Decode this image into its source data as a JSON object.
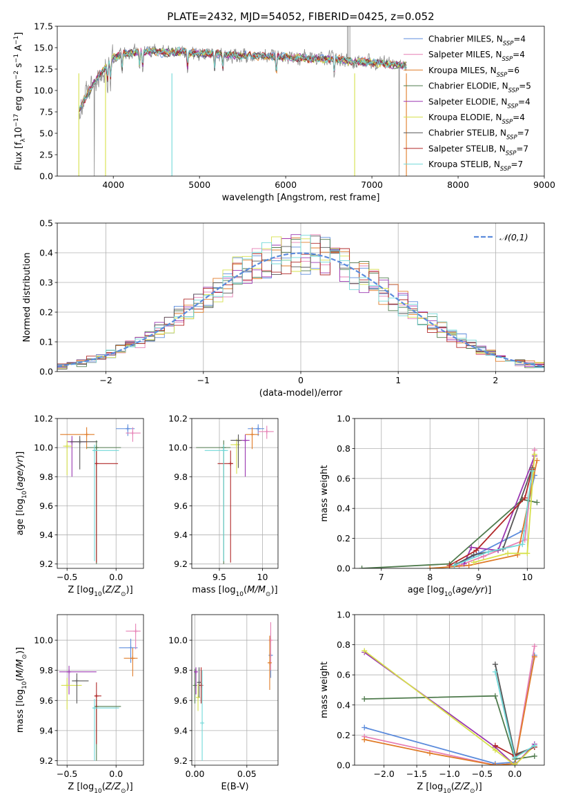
{
  "title": "PLATE=2432, MJD=54052, FIBERID=0425, z=0.052",
  "colors": {
    "chabrier_miles": "#5b8bdc",
    "salpeter_miles": "#e67fb4",
    "kroupa_miles": "#e07b27",
    "chabrier_elodie": "#4e7a4c",
    "salpeter_elodie": "#9a36b0",
    "kroupa_elodie": "#d6e04a",
    "chabrier_stelib": "#555555",
    "salpeter_stelib": "#b02828",
    "kroupa_stelib": "#70d8d8"
  },
  "chart_data": [
    {
      "id": "spectrum",
      "type": "line",
      "xlabel": "wavelength [Angstrom, rest frame]",
      "ylabel": "Flux [f_λ 10^-17 erg cm^-2 s^-1 A^-1]",
      "xlim": [
        3350,
        9000
      ],
      "ylim": [
        0,
        17.5
      ],
      "xticks": [
        4000,
        5000,
        6000,
        7000,
        8000,
        9000
      ],
      "yticks": [
        0.0,
        2.5,
        5.0,
        7.5,
        10.0,
        12.5,
        15.0,
        17.5
      ],
      "legend_position": "top-right",
      "legend": [
        "Chabrier MILES, N_SSP=4",
        "Salpeter MILES, N_SSP=4",
        "Kroupa MILES, N_SSP=6",
        "Chabrier ELODIE, N_SSP=5",
        "Salpeter ELODIE, N_SSP=4",
        "Kroupa ELODIE, N_SSP=4",
        "Chabrier STELIB, N_SSP=7",
        "Salpeter STELIB, N_SSP=7",
        "Kroupa STELIB, N_SSP=7"
      ],
      "continuum": {
        "x": [
          3600,
          3700,
          3800,
          3900,
          4000,
          4100,
          4200,
          4400,
          4600,
          4800,
          5000,
          5200,
          5400,
          5600,
          5800,
          6000,
          6200,
          6400,
          6600,
          6800,
          7000,
          7200,
          7400
        ],
        "y": [
          7.8,
          9.5,
          11.3,
          12.6,
          13.8,
          14.2,
          14.4,
          14.6,
          14.4,
          14.5,
          14.3,
          14.3,
          14.1,
          14.1,
          14.0,
          13.9,
          13.8,
          13.7,
          13.6,
          13.4,
          13.3,
          13.1,
          12.9
        ]
      },
      "absorption_features": [
        3934,
        3969,
        4102,
        4305,
        4341,
        4861,
        5175,
        5270,
        5892,
        6563
      ],
      "deep_drops": [
        3600,
        3910,
        4680,
        6800,
        7400
      ]
    },
    {
      "id": "residuals",
      "type": "histogram",
      "xlabel": "(data-model)/error",
      "ylabel": "Normed distribution",
      "xlim": [
        -2.5,
        2.5
      ],
      "ylim": [
        0,
        0.5
      ],
      "xticks": [
        -2,
        -1,
        0,
        1,
        2
      ],
      "yticks": [
        0.0,
        0.1,
        0.2,
        0.3,
        0.4,
        0.5
      ],
      "bin_width": 0.1,
      "legend_position": "top-right",
      "gaussian_label": "𝒩(0,1)",
      "gaussian_color": "#5b8bdc"
    },
    {
      "id": "age_vs_Z",
      "type": "errorbar",
      "xlabel": "Z [log10(Z/Z⊙)]",
      "ylabel": "age [log10(age/yr)]",
      "xlim": [
        -0.6,
        0.28
      ],
      "ylim": [
        9.17,
        10.2
      ],
      "xticks": [
        -0.5,
        0.0
      ],
      "xtick_labels": [
        "−0.5",
        "0.0"
      ],
      "yticks": [
        9.2,
        9.4,
        9.6,
        9.8,
        10.0,
        10.2
      ],
      "points": [
        {
          "model": "chabrier_miles",
          "x": 0.12,
          "y": 10.13,
          "xerr": [
            0.12,
            0.07
          ],
          "yerr": [
            0.05,
            0.03
          ]
        },
        {
          "model": "salpeter_miles",
          "x": 0.17,
          "y": 10.1,
          "xerr": [
            0.07,
            0.08
          ],
          "yerr": [
            0.06,
            0.04
          ]
        },
        {
          "model": "kroupa_miles",
          "x": -0.3,
          "y": 10.09,
          "xerr": [
            0.27,
            0.08
          ],
          "yerr": [
            0.1,
            0.05
          ]
        },
        {
          "model": "chabrier_elodie",
          "x": -0.2,
          "y": 10.0,
          "xerr": [
            0.1,
            0.25
          ],
          "yerr": [
            0.8,
            0.05
          ]
        },
        {
          "model": "salpeter_elodie",
          "x": -0.45,
          "y": 10.04,
          "xerr": [
            0.05,
            0.15
          ],
          "yerr": [
            0.24,
            0.04
          ]
        },
        {
          "model": "kroupa_elodie",
          "x": -0.5,
          "y": 10.01,
          "xerr": [
            0.04,
            0.05
          ],
          "yerr": [
            0.2,
            0.04
          ]
        },
        {
          "model": "chabrier_stelib",
          "x": -0.37,
          "y": 10.04,
          "xerr": [
            0.1,
            0.18
          ],
          "yerr": [
            0.19,
            0.04
          ]
        },
        {
          "model": "salpeter_stelib",
          "x": -0.2,
          "y": 9.89,
          "xerr": [
            0.02,
            0.22
          ],
          "yerr": [
            0.68,
            0.09
          ]
        },
        {
          "model": "kroupa_stelib",
          "x": -0.22,
          "y": 9.98,
          "xerr": [
            0.02,
            0.25
          ],
          "yerr": [
            0.76,
            0.04
          ]
        }
      ]
    },
    {
      "id": "age_vs_mass",
      "type": "errorbar",
      "xlabel": "mass [log10(M/M⊙)]",
      "xlim": [
        9.18,
        10.18
      ],
      "ylim": [
        9.17,
        10.2
      ],
      "xticks": [
        9.5,
        10.0
      ],
      "yticks": [
        9.2,
        9.4,
        9.6,
        9.8,
        10.0,
        10.2
      ],
      "points": [
        {
          "model": "chabrier_miles",
          "x": 9.95,
          "y": 10.13,
          "xerr": [
            0.12,
            0.07
          ],
          "yerr": [
            0.05,
            0.03
          ]
        },
        {
          "model": "salpeter_miles",
          "x": 10.05,
          "y": 10.11,
          "xerr": [
            0.1,
            0.08
          ],
          "yerr": [
            0.05,
            0.04
          ]
        },
        {
          "model": "kroupa_miles",
          "x": 9.88,
          "y": 10.09,
          "xerr": [
            0.08,
            0.08
          ],
          "yerr": [
            0.1,
            0.05
          ]
        },
        {
          "model": "chabrier_elodie",
          "x": 9.55,
          "y": 10.0,
          "xerr": [
            0.32,
            0.08
          ],
          "yerr": [
            0.8,
            0.05
          ]
        },
        {
          "model": "salpeter_elodie",
          "x": 9.8,
          "y": 10.05,
          "xerr": [
            0.1,
            0.05
          ],
          "yerr": [
            0.25,
            0.04
          ]
        },
        {
          "model": "kroupa_elodie",
          "x": 9.7,
          "y": 10.02,
          "xerr": [
            0.07,
            0.04
          ],
          "yerr": [
            0.2,
            0.04
          ]
        },
        {
          "model": "chabrier_stelib",
          "x": 9.72,
          "y": 10.05,
          "xerr": [
            0.09,
            0.04
          ],
          "yerr": [
            0.19,
            0.04
          ]
        },
        {
          "model": "salpeter_stelib",
          "x": 9.63,
          "y": 9.89,
          "xerr": [
            0.15,
            0.03
          ],
          "yerr": [
            0.68,
            0.09
          ]
        },
        {
          "model": "kroupa_stelib",
          "x": 9.55,
          "y": 9.98,
          "xerr": [
            0.22,
            0.05
          ],
          "yerr": [
            0.76,
            0.04
          ]
        }
      ]
    },
    {
      "id": "weight_vs_age",
      "type": "line",
      "xlabel": "age [log10(age/yr)]",
      "ylabel": "mass weight",
      "xlim": [
        6.45,
        10.35
      ],
      "ylim": [
        0,
        1.0
      ],
      "xticks": [
        7,
        8,
        9,
        10
      ],
      "yticks": [
        0.0,
        0.2,
        0.4,
        0.6,
        0.8,
        1.0
      ],
      "series": [
        {
          "model": "chabrier_miles",
          "x": [
            8.5,
            9.0,
            9.9,
            10.15
          ],
          "y": [
            0.02,
            0.1,
            0.25,
            0.62
          ]
        },
        {
          "model": "salpeter_miles",
          "x": [
            8.6,
            9.1,
            9.95,
            10.15
          ],
          "y": [
            0.02,
            0.08,
            0.19,
            0.79
          ]
        },
        {
          "model": "kroupa_miles",
          "x": [
            8.0,
            8.8,
            9.8,
            10.2
          ],
          "y": [
            0.0,
            0.02,
            0.09,
            0.72
          ]
        },
        {
          "model": "chabrier_elodie",
          "x": [
            6.6,
            8.4,
            9.9,
            10.2
          ],
          "y": [
            0.0,
            0.03,
            0.46,
            0.44
          ]
        },
        {
          "model": "salpeter_elodie",
          "x": [
            8.7,
            8.85,
            9.4,
            10.15
          ],
          "y": [
            0.03,
            0.14,
            0.12,
            0.75
          ]
        },
        {
          "model": "kroupa_elodie",
          "x": [
            8.9,
            9.6,
            10.0,
            10.15
          ],
          "y": [
            0.04,
            0.1,
            0.1,
            0.76
          ]
        },
        {
          "model": "chabrier_stelib",
          "x": [
            8.55,
            8.9,
            9.5,
            10.1
          ],
          "y": [
            0.03,
            0.09,
            0.13,
            0.67
          ]
        },
        {
          "model": "salpeter_stelib",
          "x": [
            8.4,
            8.95,
            9.95,
            10.1
          ],
          "y": [
            0.02,
            0.12,
            0.47,
            0.66
          ]
        },
        {
          "model": "kroupa_stelib",
          "x": [
            8.5,
            9.2,
            9.9,
            10.1
          ],
          "y": [
            0.02,
            0.11,
            0.16,
            0.65
          ]
        }
      ]
    },
    {
      "id": "mass_vs_Z",
      "type": "errorbar",
      "xlabel": "Z [log10(Z/Z⊙)]",
      "ylabel": "mass [log10(M/M⊙)]",
      "xlim": [
        -0.6,
        0.28
      ],
      "ylim": [
        9.17,
        10.17
      ],
      "xticks": [
        -0.5,
        0.0
      ],
      "xtick_labels": [
        "−0.5",
        "0.0"
      ],
      "yticks": [
        9.2,
        9.4,
        9.6,
        9.8,
        10.0
      ],
      "points": [
        {
          "model": "chabrier_miles",
          "x": 0.15,
          "y": 9.95,
          "xerr": [
            0.12,
            0.07
          ],
          "yerr": [
            0.1,
            0.06
          ]
        },
        {
          "model": "salpeter_miles",
          "x": 0.2,
          "y": 10.06,
          "xerr": [
            0.1,
            0.05
          ],
          "yerr": [
            0.12,
            0.05
          ]
        },
        {
          "model": "kroupa_miles",
          "x": 0.17,
          "y": 9.88,
          "xerr": [
            0.09,
            0.05
          ],
          "yerr": [
            0.12,
            0.07
          ]
        },
        {
          "model": "chabrier_elodie",
          "x": -0.2,
          "y": 9.56,
          "xerr": [
            0.02,
            0.25
          ],
          "yerr": [
            0.36,
            0.05
          ]
        },
        {
          "model": "salpeter_elodie",
          "x": -0.48,
          "y": 9.79,
          "xerr": [
            0.1,
            0.28
          ],
          "yerr": [
            0.15,
            0.04
          ]
        },
        {
          "model": "kroupa_elodie",
          "x": -0.5,
          "y": 9.7,
          "xerr": [
            0.06,
            0.15
          ],
          "yerr": [
            0.16,
            0.05
          ]
        },
        {
          "model": "chabrier_stelib",
          "x": -0.4,
          "y": 9.73,
          "xerr": [
            0.05,
            0.12
          ],
          "yerr": [
            0.15,
            0.05
          ]
        },
        {
          "model": "salpeter_stelib",
          "x": -0.2,
          "y": 9.63,
          "xerr": [
            0.02,
            0.05
          ],
          "yerr": [
            0.32,
            0.09
          ]
        },
        {
          "model": "kroupa_stelib",
          "x": -0.22,
          "y": 9.55,
          "xerr": [
            0.02,
            0.25
          ],
          "yerr": [
            0.35,
            0.06
          ]
        }
      ]
    },
    {
      "id": "mass_vs_ebv",
      "type": "errorbar",
      "xlabel": "E(B-V)",
      "xlim": [
        -0.003,
        0.08
      ],
      "ylim": [
        9.17,
        10.17
      ],
      "xticks": [
        0.0,
        0.05
      ],
      "xtick_labels": [
        "0.00",
        "0.05"
      ],
      "yticks": [
        9.2,
        9.4,
        9.6,
        9.8,
        10.0
      ],
      "points": [
        {
          "model": "chabrier_miles",
          "x": 0.073,
          "y": 9.9,
          "yerr": [
            0.15,
            0.15
          ]
        },
        {
          "model": "salpeter_miles",
          "x": 0.073,
          "y": 10.0,
          "yerr": [
            0.2,
            0.12
          ]
        },
        {
          "model": "kroupa_miles",
          "x": 0.072,
          "y": 9.85,
          "yerr": [
            0.18,
            0.18
          ]
        },
        {
          "model": "chabrier_elodie",
          "x": 0.0,
          "y": 9.7,
          "yerr": [
            0.12,
            0.11
          ]
        },
        {
          "model": "salpeter_elodie",
          "x": 0.001,
          "y": 9.79,
          "yerr": [
            0.15,
            0.03
          ]
        },
        {
          "model": "kroupa_elodie",
          "x": 0.003,
          "y": 9.62,
          "yerr": [
            0.09,
            0.09
          ]
        },
        {
          "model": "chabrier_stelib",
          "x": 0.004,
          "y": 9.72,
          "yerr": [
            0.1,
            0.1
          ]
        },
        {
          "model": "salpeter_stelib",
          "x": 0.006,
          "y": 9.7,
          "yerr": [
            0.12,
            0.12
          ]
        },
        {
          "model": "kroupa_stelib",
          "x": 0.007,
          "y": 9.45,
          "yerr": [
            0.25,
            0.35
          ]
        }
      ]
    },
    {
      "id": "weight_vs_Z",
      "type": "line",
      "xlabel": "Z [log10(Z/Z⊙)]",
      "ylabel": "mass weight",
      "xlim": [
        -2.45,
        0.45
      ],
      "ylim": [
        0,
        1.0
      ],
      "xticks": [
        -2.0,
        -1.5,
        -1.0,
        -0.5,
        0.0
      ],
      "xtick_labels": [
        "−2.0",
        "−1.5",
        "−1.0",
        "−0.5",
        "0.0"
      ],
      "yticks": [
        0.0,
        0.2,
        0.4,
        0.6,
        0.8,
        1.0
      ],
      "series": [
        {
          "model": "chabrier_miles",
          "x": [
            -2.3,
            -0.3,
            0.0,
            0.3
          ],
          "y": [
            0.25,
            0.01,
            0.02,
            0.73
          ]
        },
        {
          "model": "salpeter_miles",
          "x": [
            -2.3,
            -0.3,
            0.0,
            0.3
          ],
          "y": [
            0.19,
            0.0,
            0.01,
            0.79
          ]
        },
        {
          "model": "kroupa_miles",
          "x": [
            -2.3,
            -1.3,
            -0.3,
            0.0,
            0.3
          ],
          "y": [
            0.17,
            0.08,
            0.0,
            0.01,
            0.72
          ]
        },
        {
          "model": "chabrier_elodie",
          "x": [
            -2.3,
            -0.3,
            0.0,
            0.3
          ],
          "y": [
            0.44,
            0.46,
            0.04,
            0.06
          ]
        },
        {
          "model": "salpeter_elodie",
          "x": [
            -2.3,
            -0.3,
            0.0,
            0.3
          ],
          "y": [
            0.75,
            0.12,
            0.0,
            0.14
          ]
        },
        {
          "model": "kroupa_elodie",
          "x": [
            -2.3,
            -0.3,
            0.0,
            0.3
          ],
          "y": [
            0.76,
            0.1,
            0.0,
            0.13
          ]
        },
        {
          "model": "chabrier_stelib",
          "x": [
            -0.3,
            0.0,
            0.3
          ],
          "y": [
            0.67,
            0.07,
            0.12
          ]
        },
        {
          "model": "salpeter_stelib",
          "x": [
            -0.3,
            0.0,
            0.3
          ],
          "y": [
            0.13,
            0.06,
            0.12
          ]
        },
        {
          "model": "kroupa_stelib",
          "x": [
            -0.3,
            0.0,
            0.3
          ],
          "y": [
            0.62,
            0.05,
            0.13
          ]
        }
      ]
    }
  ]
}
